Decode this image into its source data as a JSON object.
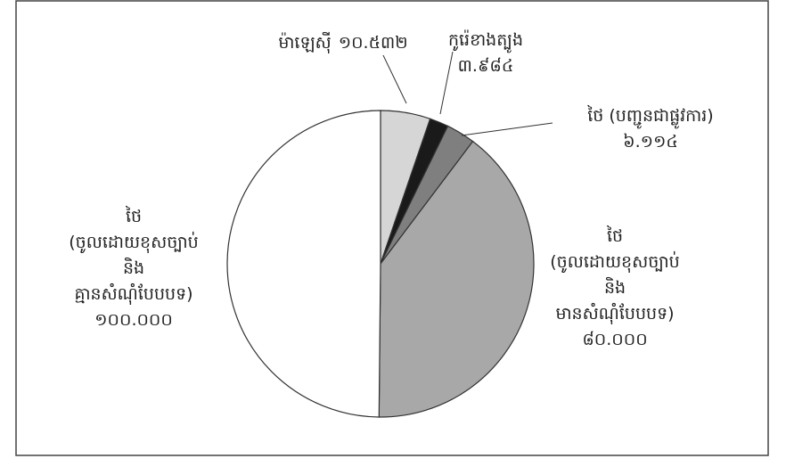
{
  "chart_data": {
    "type": "pie",
    "categories": [
      "ម៉ាឡេស៊ី",
      "កូរ៉េខាងត្បូង",
      "ថៃ (បញ្ជូនជាផ្លូវការ)",
      "ថៃ (ចូលដោយខុសច្បាប់ និង មានសំណុំបែបបទ)",
      "ថៃ (ចូលដោយខុសច្បាប់ និង គ្មានសំណុំបែបបទ)"
    ],
    "values": [
      10532,
      3984,
      6114,
      80000,
      100000
    ],
    "value_labels": [
      "១០.៥៣២",
      "៣.៩៨៤",
      "៦.១១៤",
      "៨០.០០០",
      "១០០.០០០"
    ],
    "colors": [
      "#d6d6d6",
      "#1a1a1a",
      "#7f7f7f",
      "#a8a8a8",
      "#ffffff"
    ]
  }
}
